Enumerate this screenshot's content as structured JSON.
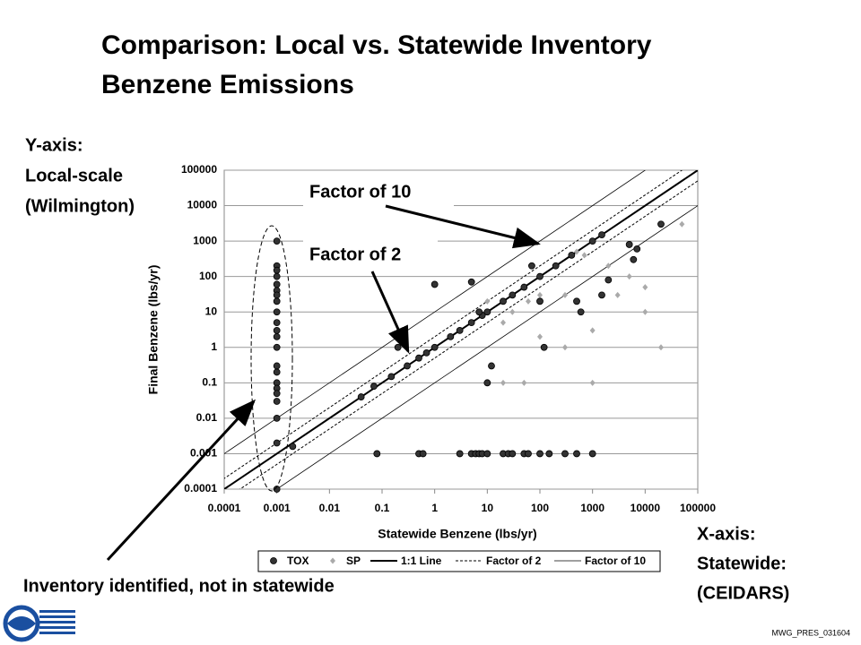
{
  "chart_data": {
    "type": "scatter",
    "title": [
      "Comparison: Local vs. Statewide Inventory",
      "Benzene Emissions"
    ],
    "x_label": "Statewide Benzene (lbs/yr)",
    "y_label": "Final Benzene (lbs/yr)",
    "log_x": true,
    "log_y": true,
    "grid": true,
    "xlim": [
      0.0001,
      100000
    ],
    "ylim": [
      0.0001,
      100000
    ],
    "xticks": [
      0.0001,
      0.001,
      0.01,
      0.1,
      1,
      10,
      100,
      1000,
      10000,
      100000
    ],
    "yticks": [
      0.0001,
      0.001,
      0.01,
      0.1,
      1,
      10,
      100,
      1000,
      10000,
      100000
    ],
    "series": [
      {
        "name": "TOX",
        "color": "#333333",
        "marker": "circle",
        "x": [
          0.001,
          0.001,
          0.001,
          0.001,
          0.001,
          0.001,
          0.001,
          0.001,
          0.001,
          0.001,
          0.001,
          0.001,
          0.001,
          0.001,
          0.001,
          0.001,
          0.001,
          0.001,
          0.001,
          0.001,
          0.001,
          0.001,
          0.08,
          0.5,
          0.6,
          3,
          5,
          6,
          7,
          8,
          10,
          20,
          25,
          30,
          50,
          60,
          100,
          150,
          300,
          500,
          1000,
          0.002,
          0.04,
          0.07,
          0.15,
          0.3,
          0.5,
          0.7,
          1,
          2,
          3,
          5,
          8,
          10,
          20,
          30,
          50,
          100,
          200,
          400,
          1000,
          1500,
          0.2,
          1,
          5,
          7,
          10,
          12,
          70,
          100,
          120,
          500,
          600,
          1500,
          2000,
          5000,
          6000,
          7000,
          20000
        ],
        "values": [
          1000,
          200,
          150,
          100,
          60,
          40,
          30,
          20,
          10,
          5,
          3,
          2,
          1,
          0.3,
          0.2,
          0.1,
          0.07,
          0.05,
          0.03,
          0.01,
          0.002,
          0.0001,
          0.001,
          0.001,
          0.001,
          0.001,
          0.001,
          0.001,
          0.001,
          0.001,
          0.001,
          0.001,
          0.001,
          0.001,
          0.001,
          0.001,
          0.001,
          0.001,
          0.001,
          0.001,
          0.001,
          0.0016,
          0.04,
          0.08,
          0.15,
          0.3,
          0.5,
          0.7,
          1,
          2,
          3,
          5,
          8,
          10,
          20,
          30,
          50,
          100,
          200,
          400,
          1000,
          1500,
          1,
          60,
          70,
          10,
          0.1,
          0.3,
          200,
          20,
          1,
          20,
          10,
          30,
          80,
          800,
          300,
          600,
          3000
        ]
      },
      {
        "name": "SP",
        "color": "#aaaaaa",
        "marker": "diamond",
        "x": [
          100,
          300,
          1000,
          20000,
          50,
          20,
          2000,
          5000,
          10000,
          500,
          300,
          700,
          3000,
          50000,
          100,
          30,
          60,
          20,
          10,
          1000,
          10000
        ],
        "values": [
          2,
          1,
          0.1,
          1,
          0.1,
          0.1,
          200,
          100,
          50,
          500,
          30,
          400,
          30,
          3000,
          30,
          10,
          20,
          5,
          20,
          3,
          10
        ]
      }
    ],
    "reference_lines": [
      {
        "name": "1:1 Line",
        "factor": 1,
        "style": "solid"
      },
      {
        "name": "Factor of 2",
        "factor": 2,
        "style": "dashed"
      },
      {
        "name": "Factor of 10",
        "factor": 10,
        "style": "thin"
      }
    ],
    "annotations": {
      "y_axis": [
        "Y-axis:",
        "Local-scale",
        "(Wilmington)"
      ],
      "x_axis": [
        "X-axis:",
        "Statewide:",
        "(CEIDARS)"
      ],
      "factor10": "Factor of 10",
      "factor2": "Factor of 2",
      "inventory": "Inventory identified, not in statewide",
      "footer": "MWG_PRES_031604"
    }
  }
}
